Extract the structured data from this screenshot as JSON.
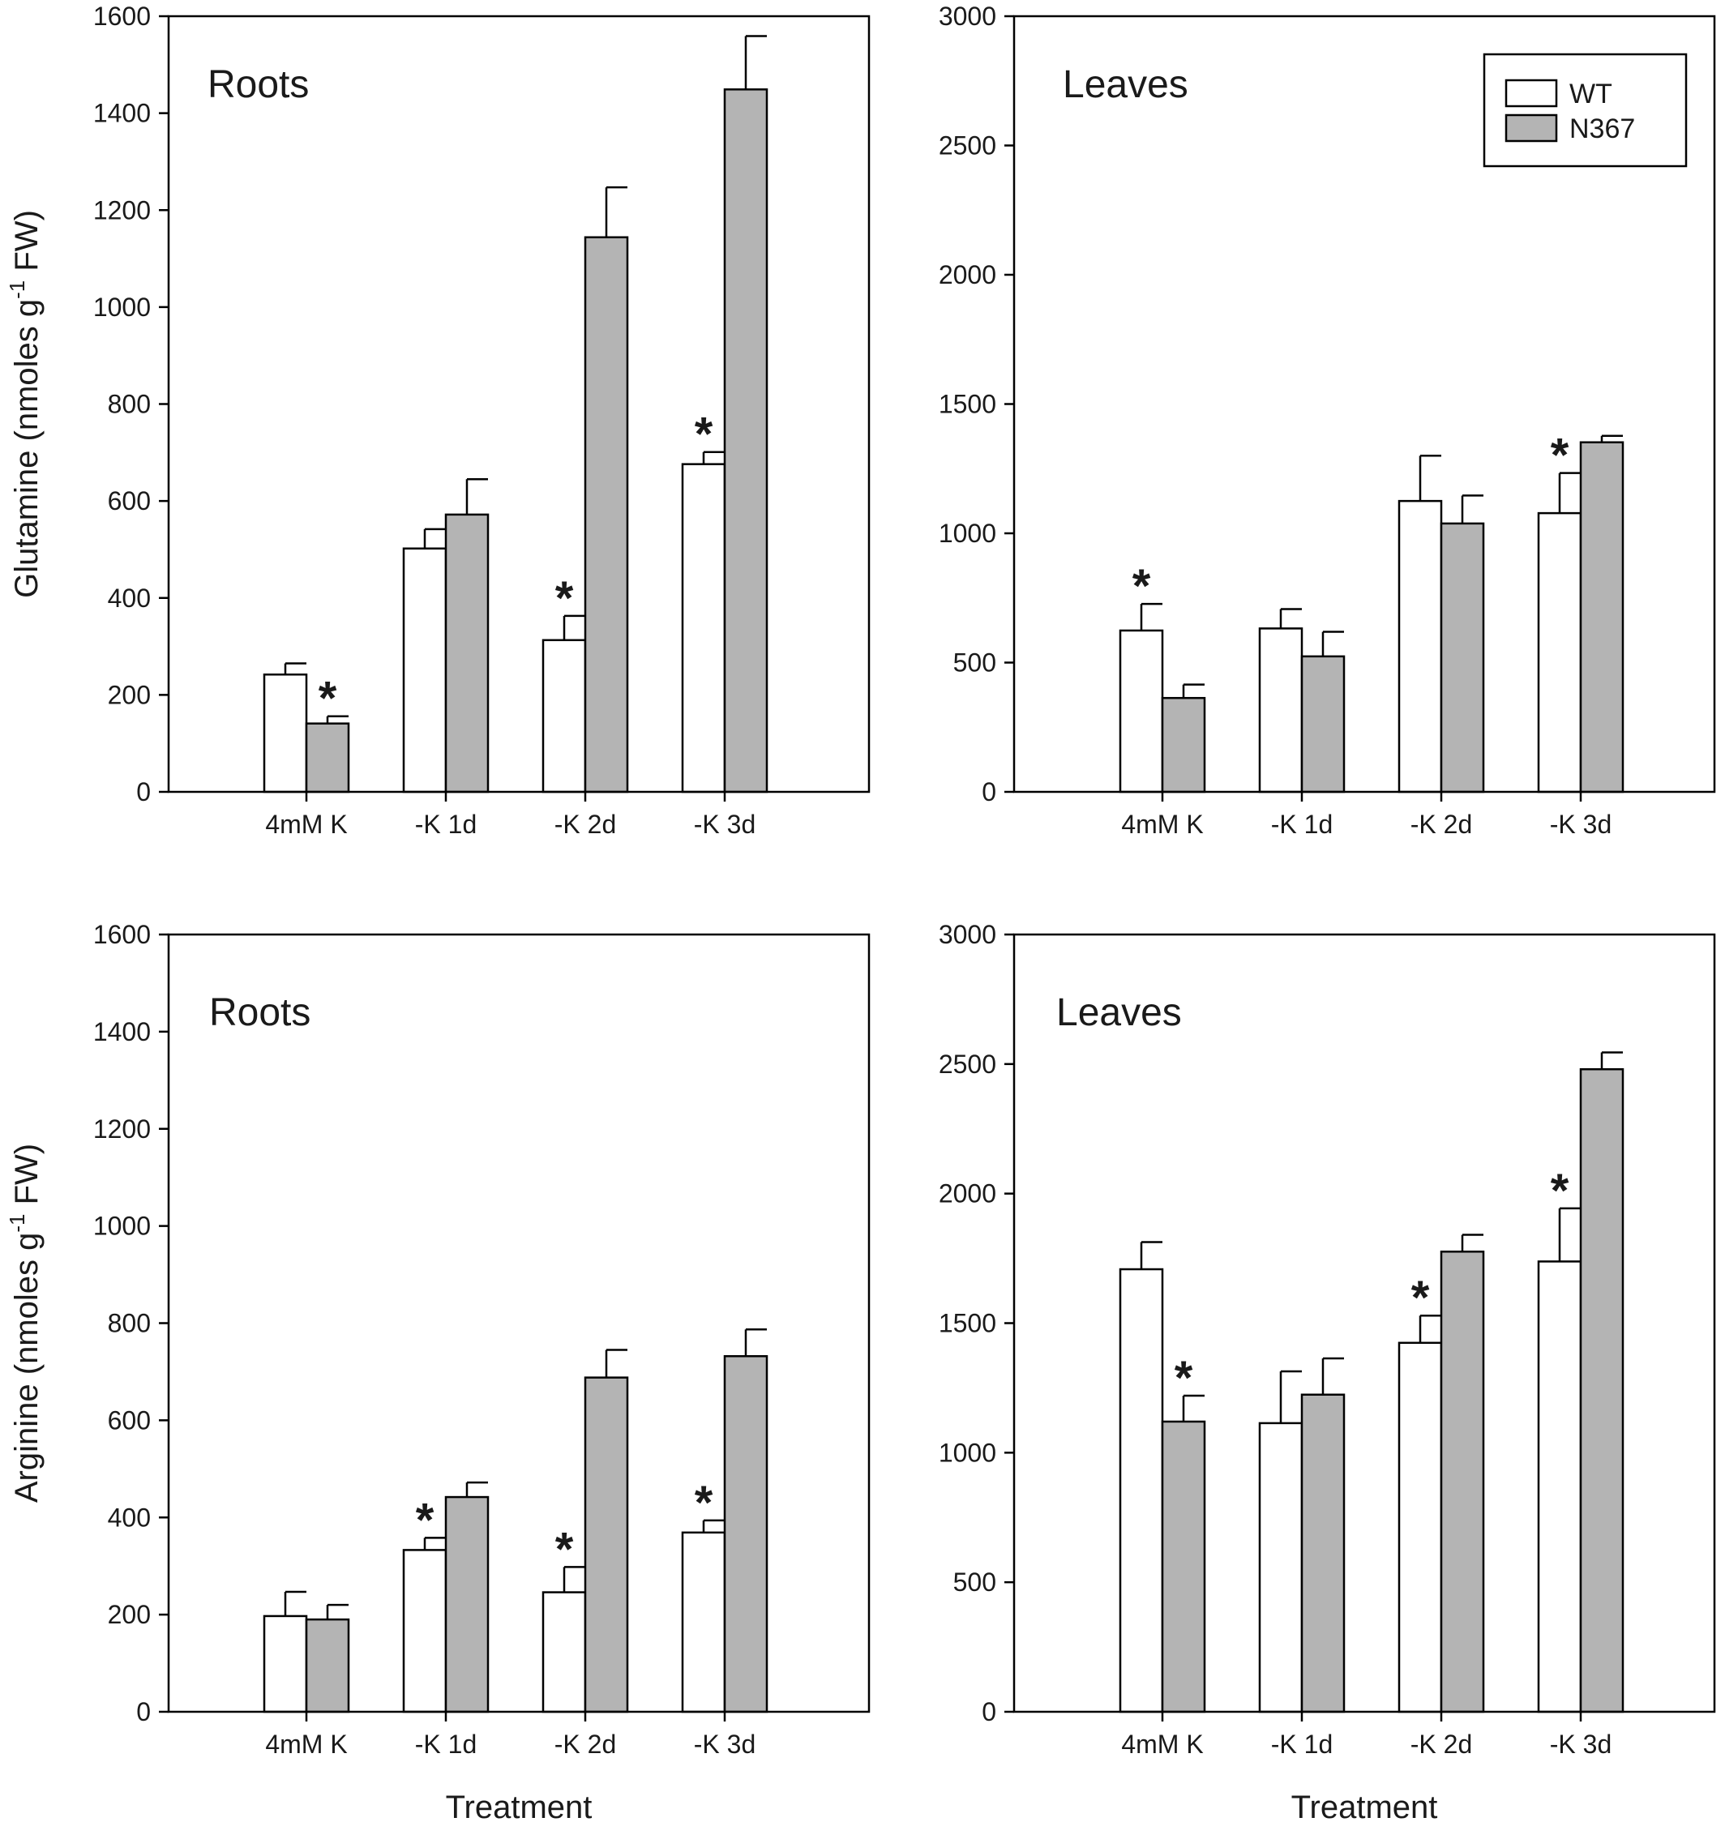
{
  "colors": {
    "WT": "#ffffff",
    "N367": "#b4b4b4",
    "stroke": "#000000"
  },
  "legend": {
    "placement": "top-right",
    "panel": 1,
    "entries": [
      "WT",
      "N367"
    ]
  },
  "chart_data": [
    {
      "type": "bar",
      "title": "Roots",
      "ylabel": "Glutamine (nmoles g-1 FW)",
      "ylabel_parts": {
        "pre": "Glutamine (nmoles g",
        "sup": "-1",
        "post": " FW)"
      },
      "xlabel": "",
      "ylim": [
        0,
        1600
      ],
      "yticks": [
        0,
        200,
        400,
        600,
        800,
        1000,
        1200,
        1400,
        1600
      ],
      "categories": [
        "4mM K",
        "-K 1d",
        "-K 2d",
        "-K 3d"
      ],
      "series": [
        {
          "name": "WT",
          "values": [
            242,
            502,
            313,
            676
          ],
          "errors": [
            23,
            40,
            50,
            25
          ],
          "significant": [
            false,
            false,
            true,
            true
          ]
        },
        {
          "name": "N367",
          "values": [
            141,
            572,
            1144,
            1449
          ],
          "errors": [
            15,
            73,
            103,
            110
          ],
          "significant": [
            true,
            false,
            false,
            false
          ]
        }
      ]
    },
    {
      "type": "bar",
      "title": "Leaves",
      "ylabel": "",
      "xlabel": "",
      "ylim": [
        0,
        3000
      ],
      "yticks": [
        0,
        500,
        1000,
        1500,
        2000,
        2500,
        3000
      ],
      "categories": [
        "4mM K",
        "-K 1d",
        "-K 2d",
        "-K 3d"
      ],
      "series": [
        {
          "name": "WT",
          "values": [
            624,
            632,
            1125,
            1078
          ],
          "errors": [
            103,
            75,
            175,
            155
          ],
          "significant": [
            true,
            false,
            false,
            true
          ]
        },
        {
          "name": "N367",
          "values": [
            363,
            524,
            1038,
            1352
          ],
          "errors": [
            52,
            95,
            108,
            25
          ],
          "significant": [
            false,
            false,
            false,
            false
          ]
        }
      ]
    },
    {
      "type": "bar",
      "title": "Roots",
      "ylabel": "Arginine (nmoles g-1 FW)",
      "ylabel_parts": {
        "pre": "Arginine (nmoles g",
        "sup": "-1",
        "post": " FW)"
      },
      "xlabel": "Treatment",
      "ylim": [
        0,
        1600
      ],
      "yticks": [
        0,
        200,
        400,
        600,
        800,
        1000,
        1200,
        1400,
        1600
      ],
      "categories": [
        "4mM K",
        "-K 1d",
        "-K 2d",
        "-K 3d"
      ],
      "series": [
        {
          "name": "WT",
          "values": [
            197,
            333,
            246,
            369
          ],
          "errors": [
            50,
            25,
            52,
            25
          ],
          "significant": [
            false,
            true,
            true,
            true
          ]
        },
        {
          "name": "N367",
          "values": [
            190,
            442,
            688,
            732
          ],
          "errors": [
            30,
            30,
            57,
            55
          ],
          "significant": [
            false,
            false,
            false,
            false
          ]
        }
      ]
    },
    {
      "type": "bar",
      "title": "Leaves",
      "ylabel": "",
      "xlabel": "Treatment",
      "ylim": [
        0,
        3000
      ],
      "yticks": [
        0,
        500,
        1000,
        1500,
        2000,
        2500,
        3000
      ],
      "categories": [
        "4mM K",
        "-K 1d",
        "-K 2d",
        "-K 3d"
      ],
      "series": [
        {
          "name": "WT",
          "values": [
            1708,
            1114,
            1424,
            1738
          ],
          "errors": [
            105,
            200,
            105,
            205
          ],
          "significant": [
            false,
            false,
            true,
            true
          ]
        },
        {
          "name": "N367",
          "values": [
            1120,
            1224,
            1776,
            2480
          ],
          "errors": [
            100,
            140,
            65,
            65
          ],
          "significant": [
            true,
            false,
            false,
            false
          ]
        }
      ]
    }
  ]
}
